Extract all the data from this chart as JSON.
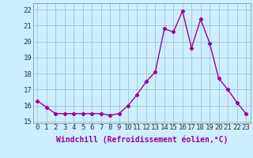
{
  "x": [
    0,
    1,
    2,
    3,
    4,
    5,
    6,
    7,
    8,
    9,
    10,
    11,
    12,
    13,
    14,
    15,
    16,
    17,
    18,
    19,
    20,
    21,
    22,
    23
  ],
  "y": [
    16.3,
    15.9,
    15.5,
    15.5,
    15.5,
    15.5,
    15.5,
    15.5,
    15.4,
    15.5,
    16.0,
    16.7,
    17.5,
    18.1,
    20.8,
    20.6,
    21.9,
    19.6,
    21.4,
    19.9,
    17.7,
    17.0,
    16.2,
    15.5
  ],
  "line_color": "#990099",
  "marker": "D",
  "marker_size": 2.2,
  "bg_color": "#cceeff",
  "grid_color": "#99bbcc",
  "xlabel": "Windchill (Refroidissement éolien,°C)",
  "ylim": [
    14.9,
    22.4
  ],
  "xlim": [
    -0.5,
    23.5
  ],
  "yticks": [
    15,
    16,
    17,
    18,
    19,
    20,
    21,
    22
  ],
  "xticks": [
    0,
    1,
    2,
    3,
    4,
    5,
    6,
    7,
    8,
    9,
    10,
    11,
    12,
    13,
    14,
    15,
    16,
    17,
    18,
    19,
    20,
    21,
    22,
    23
  ],
  "xlabel_fontsize": 7,
  "tick_fontsize": 6.5,
  "line_width": 1.0
}
